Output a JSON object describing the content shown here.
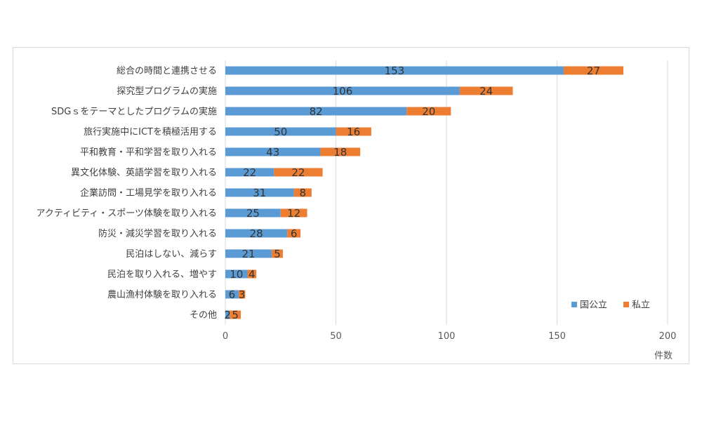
{
  "chart_data": {
    "type": "bar",
    "orientation": "horizontal",
    "stacked": true,
    "categories": [
      "総合の時間と連携させる",
      "探究型プログラムの実施",
      "SDGｓをテーマとしたプログラムの実施",
      "旅行実施中にICTを積極活用する",
      "平和教育・平和学習を取り入れる",
      "異文化体験、英語学習を取り入れる",
      "企業訪問・工場見学を取り入れる",
      "アクティビティ・スポーツ体験を取り入れる",
      "防災・減災学習を取り入れる",
      "民泊はしない、減らす",
      "民泊を取り入れる、増やす",
      "農山漁村体験を取り入れる",
      "その他"
    ],
    "series": [
      {
        "name": "国公立",
        "color": "#5b9bd5",
        "values": [
          153,
          106,
          82,
          50,
          43,
          22,
          31,
          25,
          28,
          21,
          10,
          6,
          2
        ]
      },
      {
        "name": "私立",
        "color": "#ed7d31",
        "values": [
          27,
          24,
          20,
          16,
          18,
          22,
          8,
          12,
          6,
          5,
          4,
          3,
          5
        ]
      }
    ],
    "xlim": [
      0,
      200
    ],
    "xticks": [
      "0",
      "50",
      "100",
      "150",
      "200"
    ],
    "xlabel": "件数",
    "grid": true,
    "legend_position": "bottom-right"
  }
}
